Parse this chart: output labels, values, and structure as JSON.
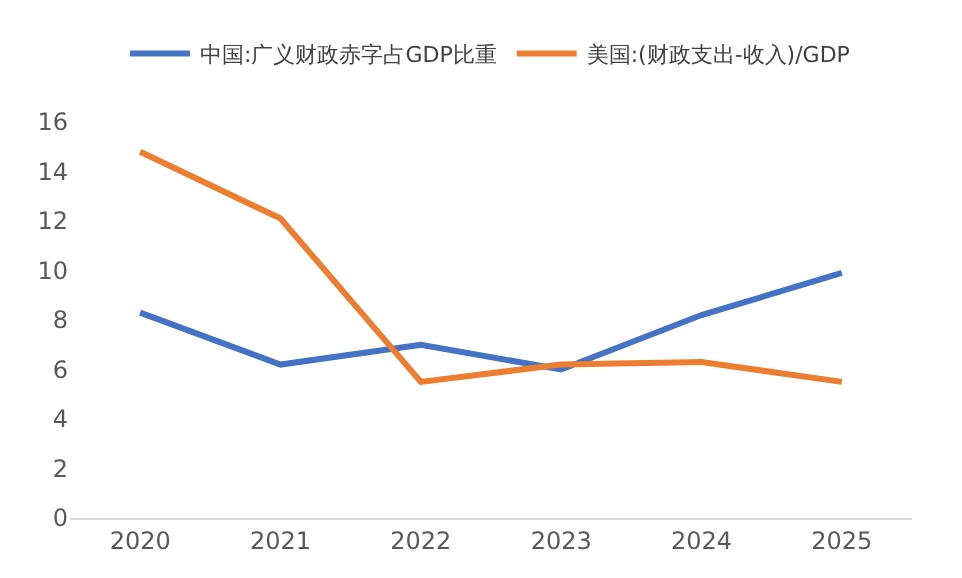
{
  "chart_data": {
    "type": "line",
    "categories": [
      "2020",
      "2021",
      "2022",
      "2023",
      "2024",
      "2025"
    ],
    "series": [
      {
        "name": "中国:广义财政赤字占GDP比重",
        "color": "#4472c4",
        "values": [
          8.3,
          6.2,
          7.0,
          6.0,
          8.2,
          9.9
        ]
      },
      {
        "name": "美国:(财政支出-收入)/GDP",
        "color": "#ed7d31",
        "values": [
          14.8,
          12.1,
          5.5,
          6.2,
          6.3,
          5.5
        ]
      }
    ],
    "ylim": [
      0,
      16
    ],
    "yticks": [
      0,
      2,
      4,
      6,
      8,
      10,
      12,
      14,
      16
    ],
    "legend": "top",
    "marker": "none",
    "line_style": "solid"
  }
}
